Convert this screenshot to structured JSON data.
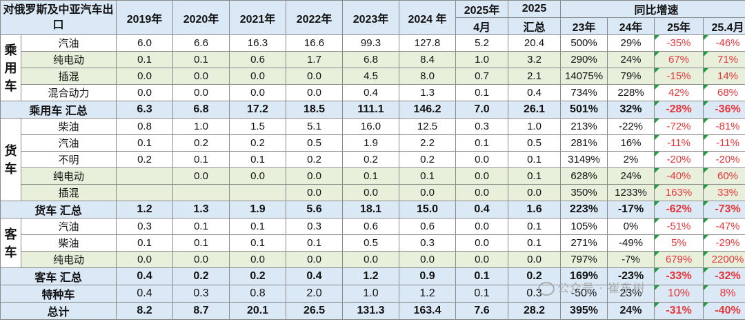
{
  "header": {
    "title": "对俄罗斯及中亚汽车出口",
    "years": [
      "2019年",
      "2020年",
      "2021年",
      "2022年",
      "2023年",
      "2024 年"
    ],
    "col_2025_month_top": "2025年",
    "col_2025_month_bottom": "4月",
    "col_2025_total_top": "2025",
    "col_2025_total_bottom": "汇总",
    "yoy_label": "同比增速",
    "yoy_cols": [
      "23年",
      "24年",
      "25年",
      "25.4月"
    ]
  },
  "sections": [
    {
      "category": "乘用车",
      "rows": [
        {
          "name": "汽油",
          "values": [
            "6.0",
            "6.6",
            "16.3",
            "16.6",
            "99.3",
            "127.8",
            "5.2",
            "20.4"
          ],
          "yoy": [
            "500%",
            "29%",
            "-35%",
            "-46%"
          ],
          "green": false
        },
        {
          "name": "纯电动",
          "values": [
            "0.1",
            "0.1",
            "0.6",
            "1.7",
            "6.8",
            "8.4",
            "1.0",
            "3.2"
          ],
          "yoy": [
            "290%",
            "24%",
            "67%",
            "71%"
          ],
          "green": true
        },
        {
          "name": "插混",
          "values": [
            "0.0",
            "0.0",
            "0.0",
            "0.0",
            "4.5",
            "8.0",
            "0.7",
            "2.1"
          ],
          "yoy": [
            "14075%",
            "79%",
            "-15%",
            "14%"
          ],
          "green": true
        },
        {
          "name": "混合动力",
          "values": [
            "0.0",
            "0.0",
            "0.0",
            "0.0",
            "0.4",
            "1.3",
            "0.1",
            "0.4"
          ],
          "yoy": [
            "734%",
            "228%",
            "42%",
            "68%"
          ],
          "green": false
        }
      ],
      "summary": {
        "name": "乘用车 汇总",
        "values": [
          "6.3",
          "6.8",
          "17.2",
          "18.5",
          "111.1",
          "146.2",
          "7.0",
          "26.1"
        ],
        "yoy": [
          "501%",
          "32%",
          "-28%",
          "-36%"
        ]
      }
    },
    {
      "category": "货车",
      "rows": [
        {
          "name": "柴油",
          "values": [
            "0.8",
            "1.0",
            "1.5",
            "5.1",
            "16.0",
            "12.5",
            "0.3",
            "1.0"
          ],
          "yoy": [
            "213%",
            "-22%",
            "-72%",
            "-81%"
          ],
          "green": false
        },
        {
          "name": "汽油",
          "values": [
            "0.1",
            "0.2",
            "0.2",
            "0.5",
            "1.9",
            "2.2",
            "0.1",
            "0.5"
          ],
          "yoy": [
            "281%",
            "16%",
            "-11%",
            "-11%"
          ],
          "green": false
        },
        {
          "name": "不明",
          "values": [
            "0.2",
            "0.1",
            "0.1",
            "0.2",
            "0.2",
            "0.2",
            "0.0",
            "0.1"
          ],
          "yoy": [
            "3149%",
            "2%",
            "-20%",
            "-20%"
          ],
          "green": false
        },
        {
          "name": "纯电动",
          "values": [
            "",
            "0.0",
            "0.0",
            "0.0",
            "0.1",
            "0.1",
            "0.0",
            "0.1"
          ],
          "yoy": [
            "628%",
            "24%",
            "-40%",
            "60%"
          ],
          "green": true
        },
        {
          "name": "插混",
          "values": [
            "",
            "",
            "",
            "0.0",
            "0.0",
            "0.0",
            "0.0",
            "0.0"
          ],
          "yoy": [
            "350%",
            "1233%",
            "163%",
            "33%"
          ],
          "green": true
        }
      ],
      "summary": {
        "name": "货车 汇总",
        "values": [
          "1.2",
          "1.3",
          "1.9",
          "5.6",
          "18.1",
          "15.0",
          "0.4",
          "1.6"
        ],
        "yoy": [
          "223%",
          "-17%",
          "-62%",
          "-73%"
        ]
      }
    },
    {
      "category": "客车",
      "rows": [
        {
          "name": "汽油",
          "values": [
            "0.3",
            "0.1",
            "0.1",
            "0.3",
            "0.6",
            "0.6",
            "0.0",
            "0.1"
          ],
          "yoy": [
            "105%",
            "0%",
            "-51%",
            "-47%"
          ],
          "green": false
        },
        {
          "name": "柴油",
          "values": [
            "0.1",
            "0.1",
            "0.1",
            "0.1",
            "0.5",
            "0.3",
            "0.0",
            "0.1"
          ],
          "yoy": [
            "271%",
            "-49%",
            "5%",
            "-29%"
          ],
          "green": false
        },
        {
          "name": "纯电动",
          "values": [
            "0.0",
            "0.0",
            "0.0",
            "0.0",
            "0.0",
            "0.0",
            "0.0",
            "0.0"
          ],
          "yoy": [
            "797%",
            "-7%",
            "679%",
            "2200%"
          ],
          "green": true
        }
      ],
      "summary": {
        "name": "客车 汇总",
        "values": [
          "0.4",
          "0.2",
          "0.2",
          "0.4",
          "1.2",
          "0.9",
          "0.1",
          "0.2"
        ],
        "yoy": [
          "169%",
          "-23%",
          "-33%",
          "-32%"
        ]
      }
    }
  ],
  "special": {
    "name": "特种车",
    "values": [
      "0.4",
      "0.3",
      "0.8",
      "2.0",
      "1.0",
      "1.2",
      "0.1",
      "0.3"
    ],
    "yoy": [
      "-50%",
      "23%",
      "10%",
      "8%"
    ]
  },
  "total": {
    "name": "总计",
    "values": [
      "8.2",
      "8.7",
      "20.1",
      "26.5",
      "131.3",
      "163.4",
      "7.6",
      "28.2"
    ],
    "yoy": [
      "395%",
      "24%",
      "-31%",
      "-40%"
    ]
  },
  "watermark": "公众号 · 崔东树",
  "colors": {
    "header_bg": "#dbe8f5",
    "green_row": "#e8f0dc",
    "negative_text": "#e8363a",
    "flag": "#1e9e3e"
  }
}
